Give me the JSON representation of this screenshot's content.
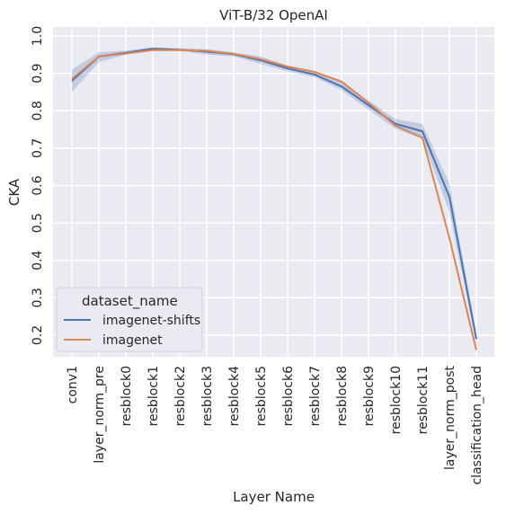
{
  "chart_data": {
    "type": "line",
    "title": "ViT-B/32  OpenAI",
    "xlabel": "Layer Name",
    "ylabel": "CKA",
    "categories": [
      "conv1",
      "layer_norm_pre",
      "resblock0",
      "resblock1",
      "resblock2",
      "resblock3",
      "resblock4",
      "resblock5",
      "resblock6",
      "resblock7",
      "resblock8",
      "resblock9",
      "resblock10",
      "resblock11",
      "layer_norm_post",
      "classification_head"
    ],
    "yticks": [
      "0.2",
      "0.3",
      "0.4",
      "0.5",
      "0.6",
      "0.7",
      "0.8",
      "0.9",
      "1.0"
    ],
    "ylim": [
      0.125,
      1.02
    ],
    "grid": true,
    "legend": {
      "title": "dataset_name",
      "position": "lower-left"
    },
    "series": [
      {
        "name": "imagenet-shifts",
        "color": "#4c72b0",
        "values": [
          0.88,
          0.945,
          0.955,
          0.966,
          0.963,
          0.958,
          0.951,
          0.935,
          0.913,
          0.897,
          0.865,
          0.815,
          0.765,
          0.745,
          0.57,
          0.19
        ],
        "ci_low": [
          0.85,
          0.93,
          0.95,
          0.962,
          0.96,
          0.95,
          0.946,
          0.925,
          0.905,
          0.89,
          0.855,
          0.803,
          0.752,
          0.725,
          0.53,
          0.175
        ],
        "ci_high": [
          0.91,
          0.956,
          0.961,
          0.97,
          0.967,
          0.965,
          0.956,
          0.945,
          0.921,
          0.905,
          0.875,
          0.827,
          0.778,
          0.765,
          0.605,
          0.205
        ]
      },
      {
        "name": "imagenet",
        "color": "#dd8452",
        "values": [
          0.885,
          0.945,
          0.953,
          0.962,
          0.962,
          0.96,
          0.952,
          0.938,
          0.918,
          0.904,
          0.878,
          0.822,
          0.76,
          0.728,
          0.46,
          0.16
        ]
      }
    ]
  }
}
